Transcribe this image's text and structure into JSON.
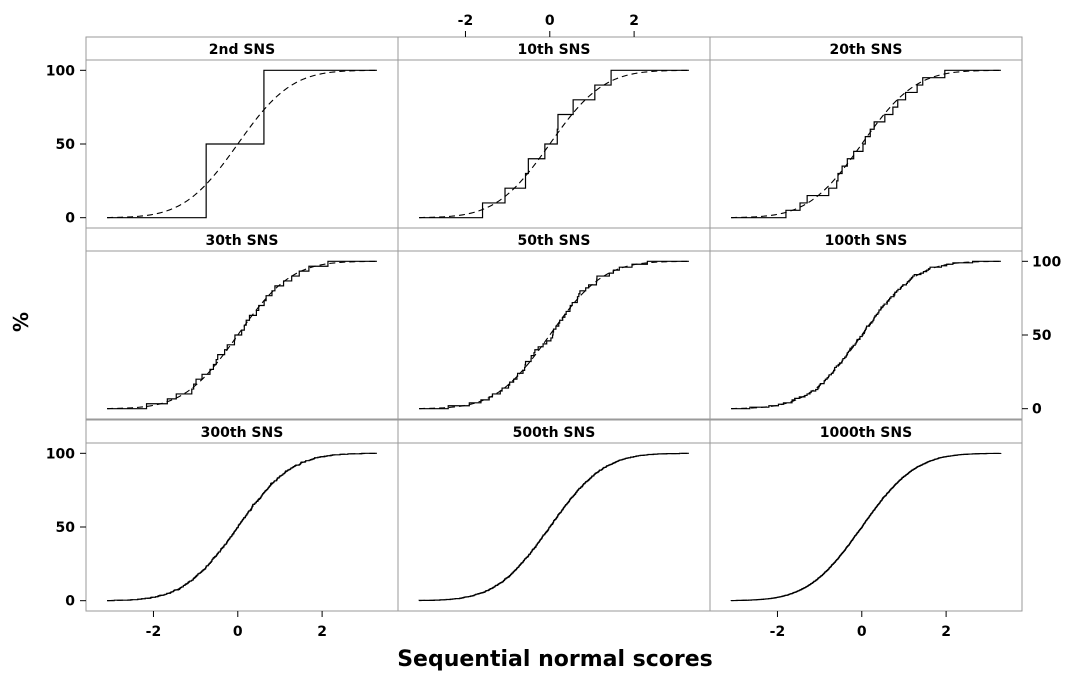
{
  "chart_data": {
    "type": "line",
    "xlabel": "Sequential normal scores",
    "ylabel": "%",
    "xlim": [
      -3.6,
      3.8
    ],
    "ylim": [
      -7,
      107
    ],
    "x_ticks": [
      -2,
      0,
      2
    ],
    "y_ticks": [
      0,
      50,
      100
    ],
    "x_tick_labels": [
      "-2",
      "0",
      "2"
    ],
    "y_tick_labels": [
      "0",
      "50",
      "100"
    ],
    "grid": false,
    "legend": "none",
    "line_color": "#000000",
    "panel_border_color": "#9a9a9a",
    "panels": [
      {
        "title": "2nd SNS",
        "n": 2
      },
      {
        "title": "10th SNS",
        "n": 10
      },
      {
        "title": "20th SNS",
        "n": 20
      },
      {
        "title": "30th SNS",
        "n": 30
      },
      {
        "title": "50th SNS",
        "n": 50
      },
      {
        "title": "100th SNS",
        "n": 100
      },
      {
        "title": "300th SNS",
        "n": 300
      },
      {
        "title": "500th SNS",
        "n": 500
      },
      {
        "title": "1000th SNS",
        "n": 1000
      }
    ]
  }
}
